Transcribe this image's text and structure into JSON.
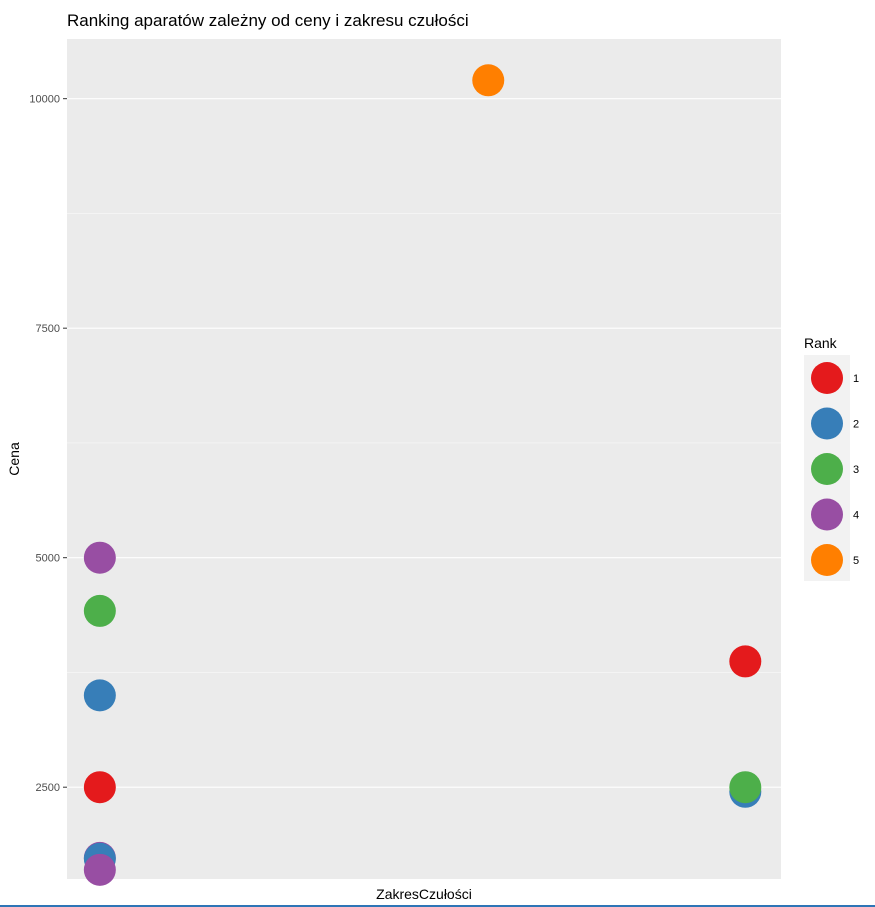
{
  "chart_data": {
    "type": "scatter",
    "title": "Ranking aparatów zależny od ceny i zakresu czułości",
    "xlabel": "ZakresCzułości",
    "ylabel": "Cena",
    "x_tick_labels": [],
    "ylim": [
      1500,
      10650
    ],
    "y_ticks": [
      2500,
      5000,
      7500,
      10000
    ],
    "y_tick_labels": [
      "2500",
      "5000",
      "7500",
      "10000"
    ],
    "xlim": [
      0,
      1
    ],
    "grid": true,
    "legend": {
      "title": "Rank",
      "position": "right",
      "entries": [
        {
          "label": "1",
          "color": "#e41a1c"
        },
        {
          "label": "2",
          "color": "#377eb8"
        },
        {
          "label": "3",
          "color": "#4daf4a"
        },
        {
          "label": "4",
          "color": "#984ea3"
        },
        {
          "label": "5",
          "color": "#ff7f00"
        }
      ]
    },
    "points": [
      {
        "x": 0.046,
        "y": 5000,
        "rank": "4"
      },
      {
        "x": 0.046,
        "y": 4420,
        "rank": "3"
      },
      {
        "x": 0.046,
        "y": 3500,
        "rank": "2"
      },
      {
        "x": 0.046,
        "y": 2500,
        "rank": "1"
      },
      {
        "x": 0.046,
        "y": 1730,
        "rank": "4"
      },
      {
        "x": 0.046,
        "y": 1720,
        "rank": "2"
      },
      {
        "x": 0.046,
        "y": 1600,
        "rank": "4"
      },
      {
        "x": 0.59,
        "y": 10200,
        "rank": "5"
      },
      {
        "x": 0.95,
        "y": 3870,
        "rank": "1"
      },
      {
        "x": 0.95,
        "y": 2450,
        "rank": "2"
      },
      {
        "x": 0.95,
        "y": 2500,
        "rank": "3"
      }
    ]
  }
}
